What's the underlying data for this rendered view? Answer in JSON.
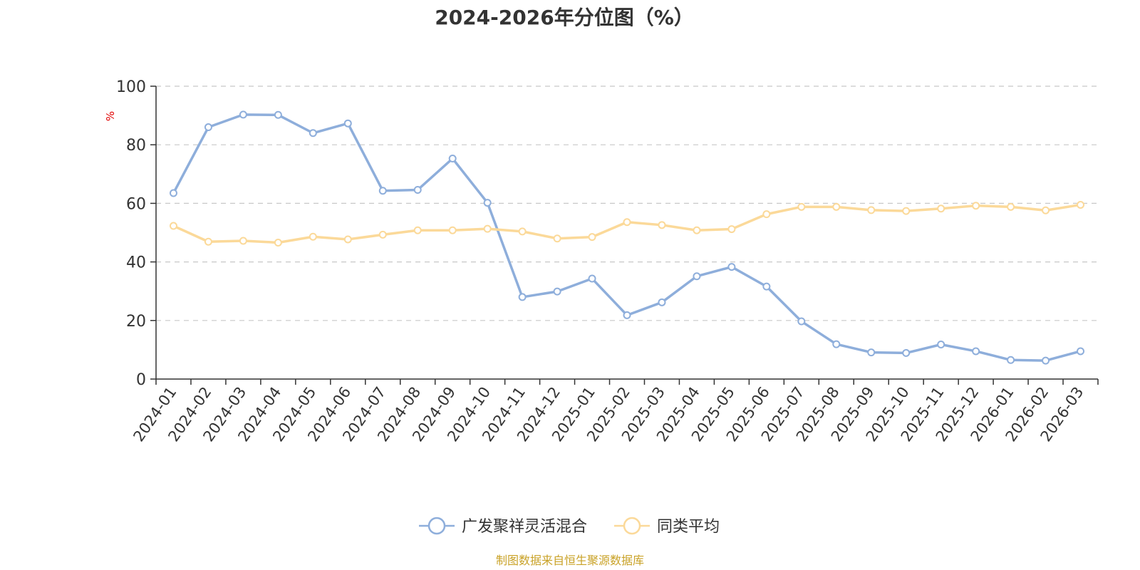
{
  "chart_data": {
    "type": "line",
    "title": "2024-2026年分位图（%）",
    "ylabel": "%",
    "xlabel": "",
    "ylim": [
      0,
      100
    ],
    "yticks": [
      0,
      20,
      40,
      60,
      80,
      100
    ],
    "grid": true,
    "legend_position": "bottom-center",
    "categories": [
      "2024-01",
      "2024-02",
      "2024-03",
      "2024-04",
      "2024-05",
      "2024-06",
      "2024-07",
      "2024-08",
      "2024-09",
      "2024-10",
      "2024-11",
      "2024-12",
      "2025-01",
      "2025-02",
      "2025-03",
      "2025-04",
      "2025-05",
      "2025-06",
      "2025-07",
      "2025-08",
      "2025-09",
      "2025-10",
      "2025-11",
      "2025-12",
      "2026-01",
      "2026-02",
      "2026-03"
    ],
    "series": [
      {
        "name": "广发聚祥灵活混合",
        "color": "#8eaedb",
        "values": [
          63.5,
          86.0,
          90.3,
          90.2,
          84.0,
          87.3,
          64.3,
          64.6,
          75.3,
          60.2,
          28.0,
          29.9,
          34.3,
          21.8,
          26.2,
          35.1,
          38.3,
          31.6,
          19.7,
          11.9,
          9.1,
          8.9,
          11.8,
          9.5,
          6.5,
          6.3,
          9.5
        ]
      },
      {
        "name": "同类平均",
        "color": "#fbd999",
        "values": [
          52.3,
          46.9,
          47.2,
          46.6,
          48.6,
          47.7,
          49.3,
          50.8,
          50.8,
          51.3,
          50.4,
          48.0,
          48.5,
          53.6,
          52.6,
          50.8,
          51.2,
          56.3,
          58.8,
          58.8,
          57.7,
          57.4,
          58.2,
          59.2,
          58.8,
          57.6,
          59.5
        ]
      }
    ]
  },
  "footer": {
    "source_text": "制图数据来自恒生聚源数据库"
  }
}
